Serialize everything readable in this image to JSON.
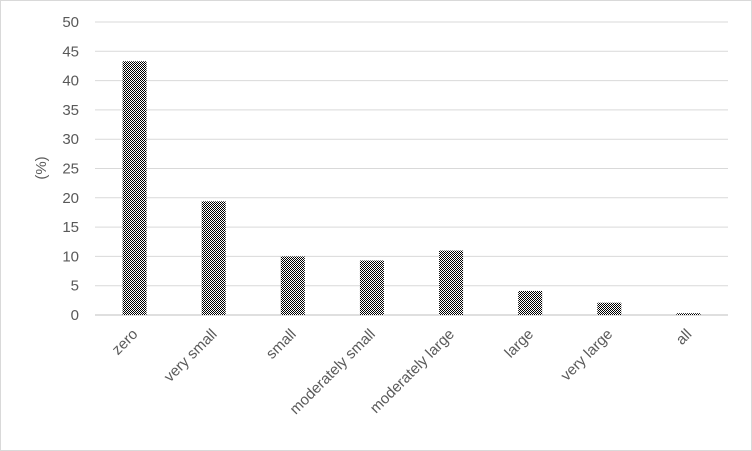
{
  "chart_data": {
    "type": "bar",
    "title": "",
    "xlabel": "",
    "ylabel": "(%)",
    "categories": [
      "zero",
      "very small",
      "small",
      "moderately small",
      "moderately large",
      "large",
      "very large",
      "all"
    ],
    "values": [
      43.3,
      19.4,
      10.0,
      9.3,
      11.0,
      4.1,
      2.1,
      0.3
    ],
    "ylim": [
      0,
      50
    ],
    "yticks": [
      0,
      5,
      10,
      15,
      20,
      25,
      30,
      35,
      40,
      45,
      50
    ],
    "grid": true,
    "legend": "none",
    "bar_pattern": "dense black checker",
    "colors": {
      "grid": "#d9d9d9",
      "text": "#595959",
      "bar": "#000000",
      "axis": "#bfbfbf"
    }
  }
}
